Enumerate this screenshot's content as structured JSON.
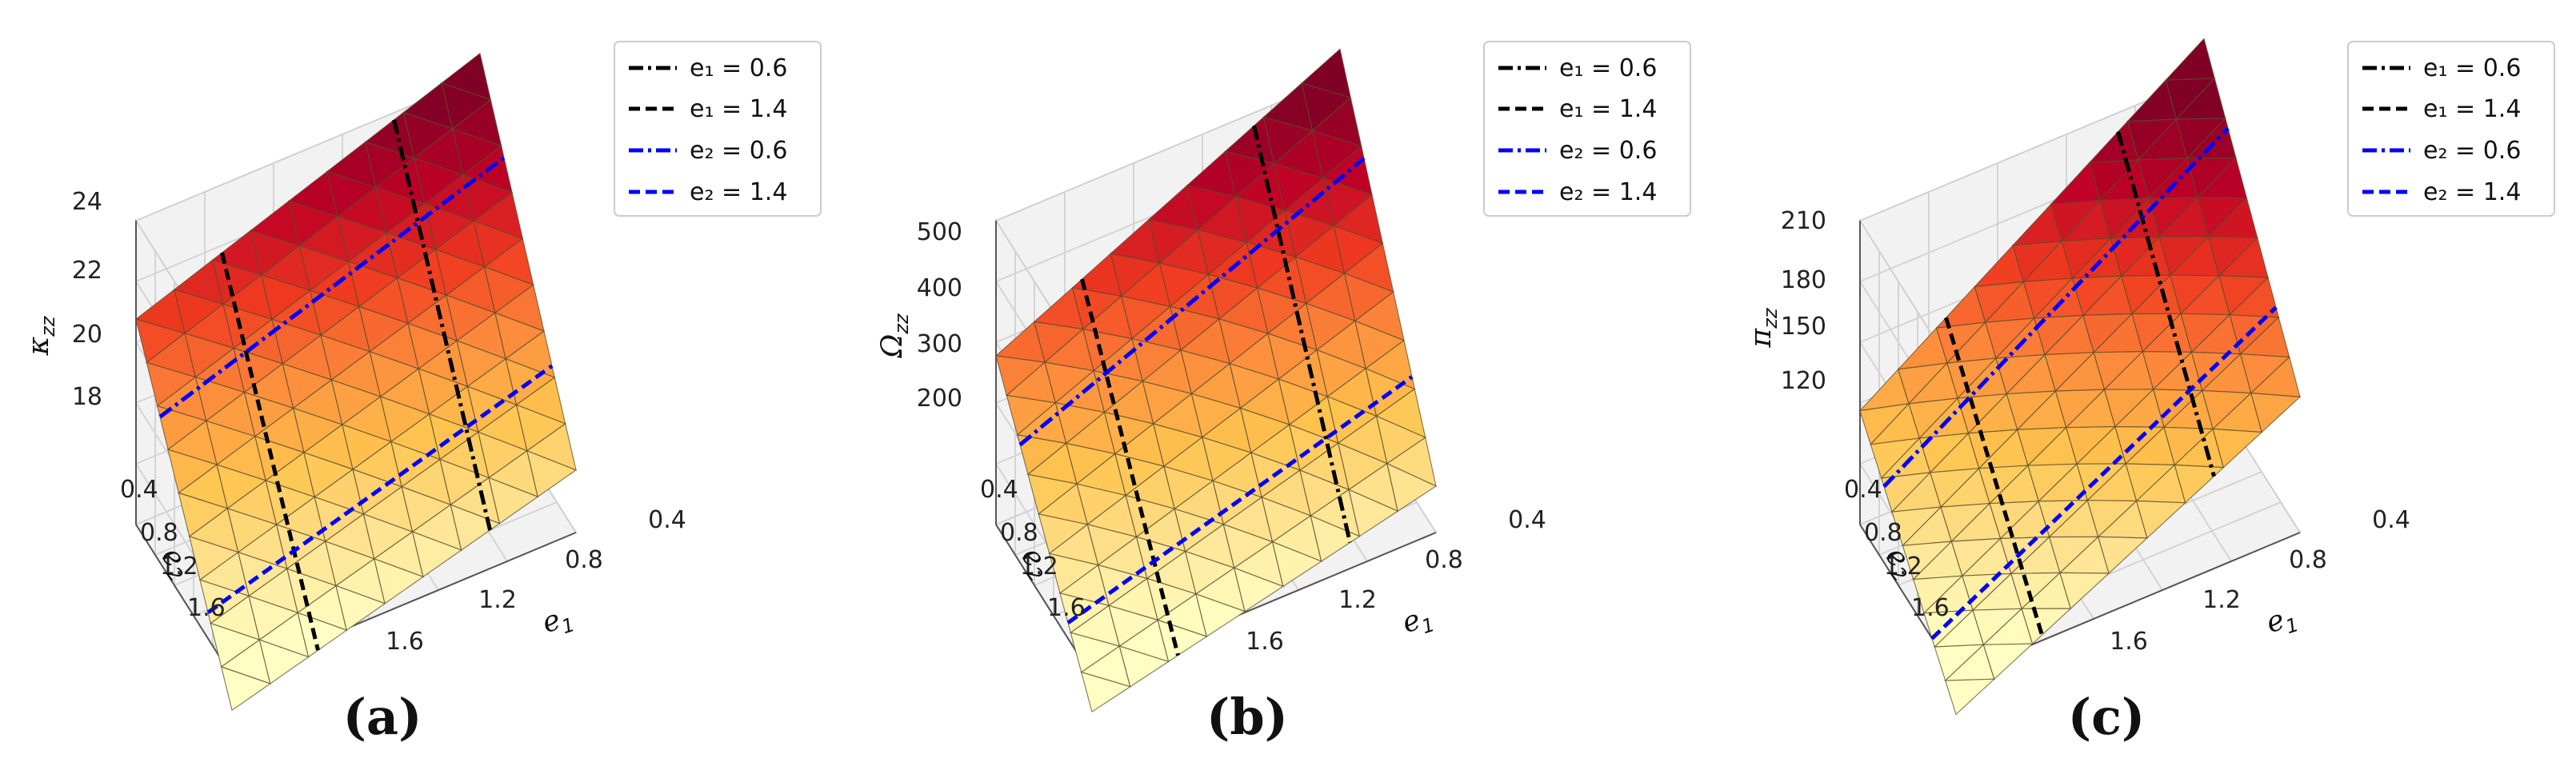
{
  "chart_data": [
    {
      "type": "surface3d",
      "panel_label": "(a)",
      "zlabel": "κ",
      "zlabel_sub": "zz",
      "xlabel": "e",
      "xlabel_sub": "1",
      "ylabel": "e",
      "ylabel_sub": "2",
      "x_ticks": [
        "1.6",
        "1.2",
        "0.8",
        "0.4"
      ],
      "y_ticks": [
        "0.4",
        "0.8",
        "1.2",
        "1.6"
      ],
      "z_ticks": [
        "24",
        "22",
        "20",
        "18"
      ],
      "x_range": [
        0.2,
        1.8
      ],
      "y_range": [
        0.2,
        1.8
      ],
      "z_range": [
        16.5,
        25
      ],
      "grid": true,
      "corner_values": {
        "e1_low_e2_low": 25.5,
        "e1_high_e2_low": 22.4,
        "e1_low_e2_high": 18.4,
        "e1_high_e2_high": 15.4
      },
      "legend": [
        {
          "label": "e₁ = 0.6",
          "color": "#000000",
          "style": "dashdot"
        },
        {
          "label": "e₁ = 1.4",
          "color": "#000000",
          "style": "dashed"
        },
        {
          "label": "e₂ = 0.6",
          "color": "#0000ff",
          "style": "dashdot"
        },
        {
          "label": "e₂ = 1.4",
          "color": "#0000ff",
          "style": "dashed"
        }
      ]
    },
    {
      "type": "surface3d",
      "panel_label": "(b)",
      "zlabel": "Ω",
      "zlabel_sub": "zz",
      "xlabel": "e",
      "xlabel_sub": "1",
      "ylabel": "e",
      "ylabel_sub": "2",
      "x_ticks": [
        "1.6",
        "1.2",
        "0.8",
        "0.4"
      ],
      "y_ticks": [
        "0.4",
        "0.8",
        "1.2",
        "1.6"
      ],
      "z_ticks": [
        "500",
        "400",
        "300",
        "200"
      ],
      "x_range": [
        0.2,
        1.8
      ],
      "y_range": [
        0.2,
        1.8
      ],
      "z_range": [
        150,
        560
      ],
      "grid": true,
      "corner_values": {
        "e1_low_e2_low": 590,
        "e1_high_e2_low": 385,
        "e1_low_e2_high": 220,
        "e1_high_e2_high": 95
      },
      "legend": [
        {
          "label": "e₁ = 0.6",
          "color": "#000000",
          "style": "dashdot"
        },
        {
          "label": "e₁ = 1.4",
          "color": "#000000",
          "style": "dashed"
        },
        {
          "label": "e₂ = 0.6",
          "color": "#0000ff",
          "style": "dashdot"
        },
        {
          "label": "e₂ = 1.4",
          "color": "#0000ff",
          "style": "dashed"
        }
      ]
    },
    {
      "type": "surface3d",
      "panel_label": "(c)",
      "zlabel": "π",
      "zlabel_sub": "zz",
      "xlabel": "e",
      "xlabel_sub": "1",
      "ylabel": "e",
      "ylabel_sub": "2",
      "x_ticks": [
        "1.6",
        "1.2",
        "0.8",
        "0.4"
      ],
      "y_ticks": [
        "0.4",
        "0.8",
        "1.2",
        "1.6"
      ],
      "z_ticks": [
        "210",
        "180",
        "150",
        "120"
      ],
      "x_range": [
        0.2,
        1.8
      ],
      "y_range": [
        0.2,
        1.8
      ],
      "z_range": [
        95,
        235
      ],
      "grid": true,
      "corner_values": {
        "e1_low_e2_low": 250,
        "e1_high_e2_low": 150,
        "e1_low_e2_high": 160,
        "e1_high_e2_high": 75
      },
      "legend": [
        {
          "label": "e₁ = 0.6",
          "color": "#000000",
          "style": "dashdot"
        },
        {
          "label": "e₁ = 1.4",
          "color": "#000000",
          "style": "dashed"
        },
        {
          "label": "e₂ = 0.6",
          "color": "#0000ff",
          "style": "dashdot"
        },
        {
          "label": "e₂ = 1.4",
          "color": "#0000ff",
          "style": "dashed"
        }
      ]
    }
  ],
  "colormap": [
    "#ffffc4",
    "#fee391",
    "#fec44f",
    "#fd8d3c",
    "#f03b20",
    "#bd0026",
    "#800026"
  ]
}
